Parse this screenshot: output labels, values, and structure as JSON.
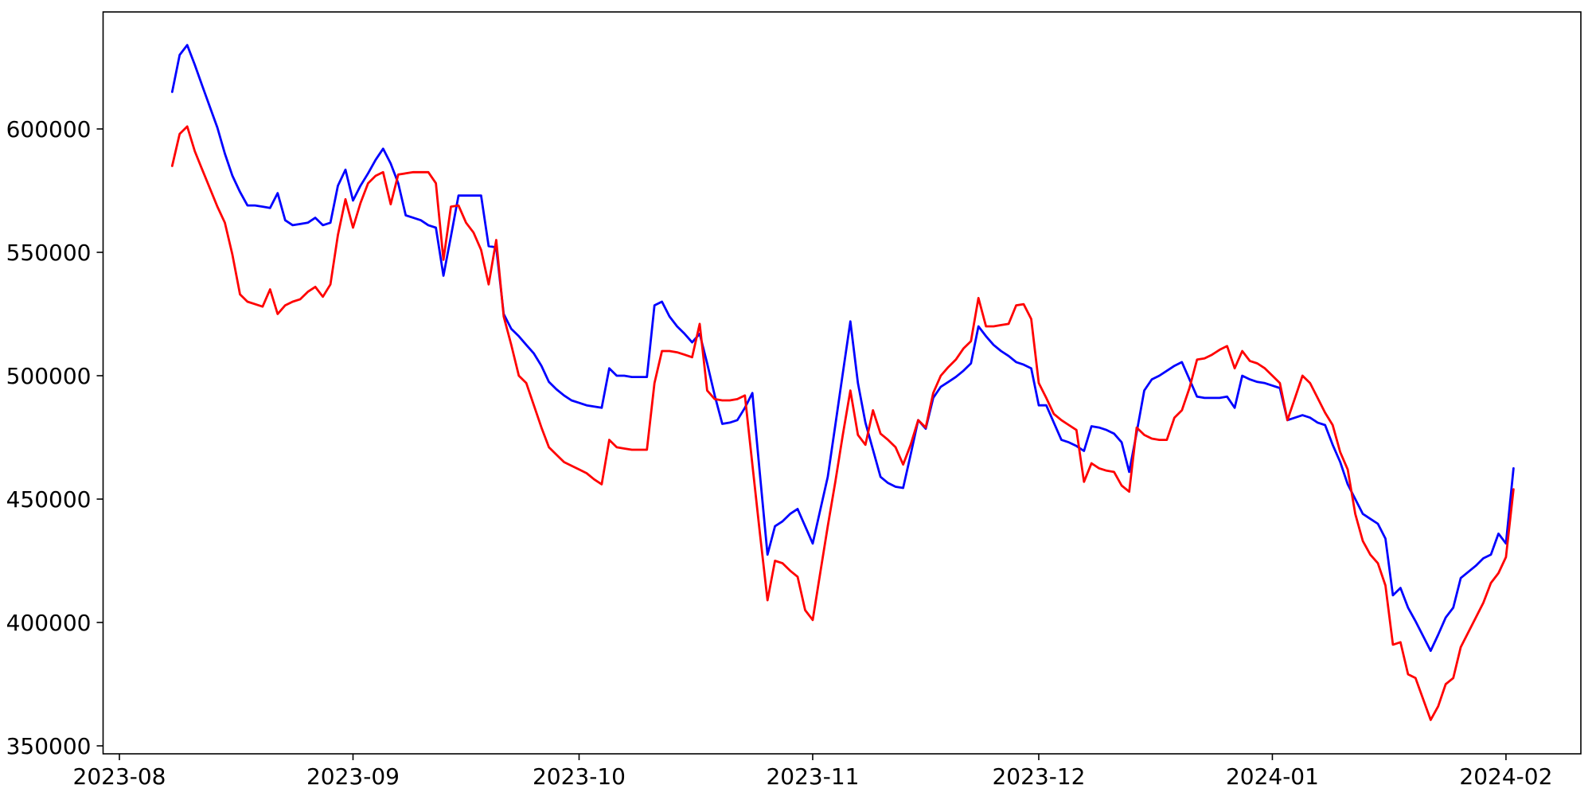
{
  "chart_data": {
    "type": "line",
    "title": "",
    "xlabel": "",
    "ylabel": "",
    "grid": false,
    "legend": null,
    "background_color": "#ffffff",
    "spine_color": "#000000",
    "tick_label_color": "#000000",
    "tick_font_size": 28,
    "xlim": [
      "2023-07-30",
      "2024-02-11"
    ],
    "ylim": [
      346800,
      647400
    ],
    "y_ticks": [
      350000,
      400000,
      450000,
      500000,
      550000,
      600000
    ],
    "y_tick_labels": [
      "350000",
      "400000",
      "450000",
      "500000",
      "550000",
      "600000"
    ],
    "x_ticks": [
      "2023-08-01",
      "2023-09-01",
      "2023-10-01",
      "2023-11-01",
      "2023-12-01",
      "2024-01-01",
      "2024-02-01"
    ],
    "x_tick_labels": [
      "2023-08",
      "2023-09",
      "2023-10",
      "2023-11",
      "2023-12",
      "2024-01",
      "2024-02"
    ],
    "dates": [
      "2023-08-08",
      "2023-08-09",
      "2023-08-10",
      "2023-08-11",
      "2023-08-12",
      "2023-08-13",
      "2023-08-14",
      "2023-08-15",
      "2023-08-16",
      "2023-08-17",
      "2023-08-18",
      "2023-08-19",
      "2023-08-20",
      "2023-08-21",
      "2023-08-22",
      "2023-08-23",
      "2023-08-24",
      "2023-08-25",
      "2023-08-26",
      "2023-08-27",
      "2023-08-28",
      "2023-08-29",
      "2023-08-30",
      "2023-08-31",
      "2023-09-01",
      "2023-09-02",
      "2023-09-03",
      "2023-09-04",
      "2023-09-05",
      "2023-09-06",
      "2023-09-07",
      "2023-09-08",
      "2023-09-09",
      "2023-09-10",
      "2023-09-11",
      "2023-09-12",
      "2023-09-13",
      "2023-09-14",
      "2023-09-15",
      "2023-09-16",
      "2023-09-17",
      "2023-09-18",
      "2023-09-19",
      "2023-09-20",
      "2023-09-21",
      "2023-09-22",
      "2023-09-23",
      "2023-09-24",
      "2023-09-25",
      "2023-09-26",
      "2023-09-27",
      "2023-09-28",
      "2023-09-29",
      "2023-09-30",
      "2023-10-01",
      "2023-10-02",
      "2023-10-03",
      "2023-10-04",
      "2023-10-05",
      "2023-10-06",
      "2023-10-07",
      "2023-10-08",
      "2023-10-09",
      "2023-10-10",
      "2023-10-11",
      "2023-10-12",
      "2023-10-13",
      "2023-10-14",
      "2023-10-15",
      "2023-10-16",
      "2023-10-17",
      "2023-10-18",
      "2023-10-19",
      "2023-10-20",
      "2023-10-21",
      "2023-10-22",
      "2023-10-23",
      "2023-10-24",
      "2023-10-25",
      "2023-10-26",
      "2023-10-27",
      "2023-10-28",
      "2023-10-29",
      "2023-10-30",
      "2023-10-31",
      "2023-11-01",
      "2023-11-02",
      "2023-11-03",
      "2023-11-04",
      "2023-11-05",
      "2023-11-06",
      "2023-11-07",
      "2023-11-08",
      "2023-11-09",
      "2023-11-10",
      "2023-11-11",
      "2023-11-12",
      "2023-11-13",
      "2023-11-14",
      "2023-11-15",
      "2023-11-16",
      "2023-11-17",
      "2023-11-18",
      "2023-11-19",
      "2023-11-20",
      "2023-11-21",
      "2023-11-22",
      "2023-11-23",
      "2023-11-24",
      "2023-11-25",
      "2023-11-26",
      "2023-11-27",
      "2023-11-28",
      "2023-11-29",
      "2023-11-30",
      "2023-12-01",
      "2023-12-02",
      "2023-12-03",
      "2023-12-04",
      "2023-12-05",
      "2023-12-06",
      "2023-12-07",
      "2023-12-08",
      "2023-12-09",
      "2023-12-10",
      "2023-12-11",
      "2023-12-12",
      "2023-12-13",
      "2023-12-14",
      "2023-12-15",
      "2023-12-16",
      "2023-12-17",
      "2023-12-18",
      "2023-12-19",
      "2023-12-20",
      "2023-12-21",
      "2023-12-22",
      "2023-12-23",
      "2023-12-24",
      "2023-12-25",
      "2023-12-26",
      "2023-12-27",
      "2023-12-28",
      "2023-12-29",
      "2023-12-30",
      "2023-12-31",
      "2024-01-01",
      "2024-01-02",
      "2024-01-03",
      "2024-01-04",
      "2024-01-05",
      "2024-01-06",
      "2024-01-07",
      "2024-01-08",
      "2024-01-09",
      "2024-01-10",
      "2024-01-11",
      "2024-01-12",
      "2024-01-13",
      "2024-01-14",
      "2024-01-15",
      "2024-01-16",
      "2024-01-17",
      "2024-01-18",
      "2024-01-19",
      "2024-01-20",
      "2024-01-21",
      "2024-01-22",
      "2024-01-23",
      "2024-01-24",
      "2024-01-25",
      "2024-01-26",
      "2024-01-27",
      "2024-01-28",
      "2024-01-29",
      "2024-01-30",
      "2024-01-31",
      "2024-02-01",
      "2024-02-02"
    ],
    "series": [
      {
        "name": "blue",
        "color": "#0000ff",
        "values": [
          615000,
          630000,
          634000,
          626000,
          617500,
          609000,
          600500,
          590000,
          581000,
          574500,
          569000,
          569000,
          568500,
          568000,
          574000,
          563000,
          561000,
          561500,
          562000,
          564000,
          561000,
          562000,
          577000,
          583500,
          571000,
          577000,
          582000,
          587500,
          592000,
          586000,
          578000,
          565000,
          564000,
          563000,
          561000,
          560000,
          540500,
          556500,
          573000,
          573000,
          573000,
          573000,
          552500,
          552000,
          525000,
          519000,
          516000,
          512500,
          509000,
          504000,
          497500,
          494500,
          492000,
          490000,
          489000,
          488000,
          487500,
          487000,
          503000,
          500000,
          500000,
          499500,
          499500,
          499500,
          528500,
          530000,
          524000,
          520000,
          517000,
          513500,
          517000,
          505000,
          492000,
          480500,
          481000,
          482000,
          487000,
          493000,
          460000,
          427500,
          439000,
          441000,
          444000,
          446000,
          439000,
          432000,
          445500,
          459000,
          480000,
          501000,
          522000,
          497000,
          481000,
          470000,
          459000,
          456500,
          455000,
          454500,
          468000,
          482000,
          478500,
          491000,
          495500,
          497500,
          499500,
          502000,
          505000,
          520000,
          516000,
          512500,
          510000,
          508000,
          505500,
          504500,
          503000,
          488000,
          488000,
          481000,
          474000,
          473000,
          471500,
          469500,
          479500,
          479000,
          478000,
          476500,
          473000,
          461000,
          477000,
          494000,
          498500,
          500000,
          502000,
          504000,
          505500,
          498500,
          491500,
          491000,
          491000,
          491000,
          491500,
          487000,
          500000,
          498500,
          497500,
          497000,
          496000,
          495000,
          482000,
          483000,
          484000,
          483000,
          481000,
          480000,
          472000,
          465000,
          456000,
          450000,
          444000,
          442000,
          440000,
          434000,
          411000,
          414000,
          406000,
          400500,
          394500,
          388500,
          395000,
          402000,
          406000,
          418000,
          420500,
          423000,
          426000,
          427500,
          436000,
          432000,
          462500
        ]
      },
      {
        "name": "red",
        "color": "#ff0000",
        "values": [
          585000,
          598000,
          601000,
          591000,
          583500,
          576000,
          568500,
          562000,
          549000,
          533000,
          530000,
          529000,
          528000,
          535000,
          525000,
          528500,
          530000,
          531000,
          534000,
          536000,
          532000,
          537000,
          557000,
          571500,
          560000,
          570000,
          578000,
          581000,
          582500,
          569500,
          581500,
          582000,
          582500,
          582500,
          582500,
          578000,
          547000,
          568500,
          569000,
          562000,
          558000,
          551000,
          537000,
          555000,
          524000,
          512500,
          500000,
          497000,
          488000,
          479000,
          471000,
          468000,
          465000,
          463500,
          462000,
          460500,
          458000,
          456000,
          474000,
          471000,
          470500,
          470000,
          470000,
          470000,
          497000,
          510000,
          510000,
          509500,
          508500,
          507500,
          521000,
          494000,
          490500,
          490000,
          490000,
          490500,
          492000,
          464000,
          436000,
          409000,
          425000,
          424000,
          421000,
          418500,
          405000,
          401000,
          420000,
          439000,
          457000,
          476000,
          494000,
          476000,
          472000,
          486000,
          476500,
          474000,
          471000,
          464000,
          472000,
          482000,
          479000,
          493000,
          500000,
          503500,
          506500,
          511000,
          514000,
          531500,
          520000,
          520000,
          520500,
          521000,
          528500,
          529000,
          523000,
          497000,
          491000,
          484500,
          482000,
          480000,
          478000,
          457000,
          464500,
          462500,
          461500,
          461000,
          455500,
          453000,
          479000,
          476000,
          474500,
          474000,
          474000,
          483000,
          486000,
          495000,
          506500,
          507000,
          508500,
          510500,
          512000,
          503000,
          510000,
          506000,
          505000,
          503000,
          500000,
          497000,
          482000,
          491000,
          500000,
          497000,
          491000,
          485000,
          480000,
          469000,
          462000,
          444000,
          433000,
          427500,
          424000,
          415000,
          391000,
          392000,
          379000,
          377500,
          369000,
          360500,
          366000,
          375000,
          377500,
          390000,
          396000,
          402000,
          408000,
          416000,
          420000,
          426500,
          454000
        ]
      }
    ]
  }
}
